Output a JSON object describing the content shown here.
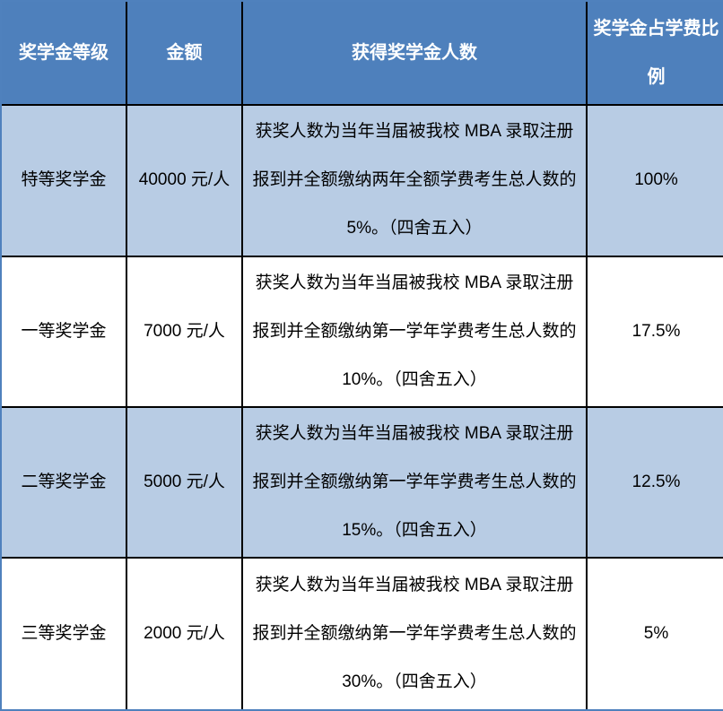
{
  "colors": {
    "header_bg": "#4E80BC",
    "header_text": "#FFFFFF",
    "band_row_bg": "#B8CCE4",
    "plain_row_bg": "#FFFFFF",
    "grid_line": "#000000",
    "outer_border": "#4F81BD"
  },
  "table": {
    "headers": {
      "level": "奖学金等级",
      "amount": "金额",
      "recipients": "获得奖学金人数",
      "ratio": "奖学金占学费比例"
    },
    "rows": [
      {
        "level": "特等奖学金",
        "amount": "40000 元/人",
        "recipients": "获奖人数为当年当届被我校 MBA 录取注册报到并全额缴纳两年全额学费考生总人数的 5%。（四舍五入）",
        "ratio": "100%"
      },
      {
        "level": "一等奖学金",
        "amount": "7000 元/人",
        "recipients": "获奖人数为当年当届被我校 MBA 录取注册报到并全额缴纳第一学年学费考生总人数的 10%。（四舍五入）",
        "ratio": "17.5%"
      },
      {
        "level": "二等奖学金",
        "amount": "5000 元/人",
        "recipients": "获奖人数为当年当届被我校 MBA 录取注册报到并全额缴纳第一学年学费考生总人数的 15%。（四舍五入）",
        "ratio": "12.5%"
      },
      {
        "level": "三等奖学金",
        "amount": "2000 元/人",
        "recipients": "获奖人数为当年当届被我校 MBA 录取注册报到并全额缴纳第一学年学费考生总人数的 30%。（四舍五入）",
        "ratio": "5%"
      }
    ]
  }
}
